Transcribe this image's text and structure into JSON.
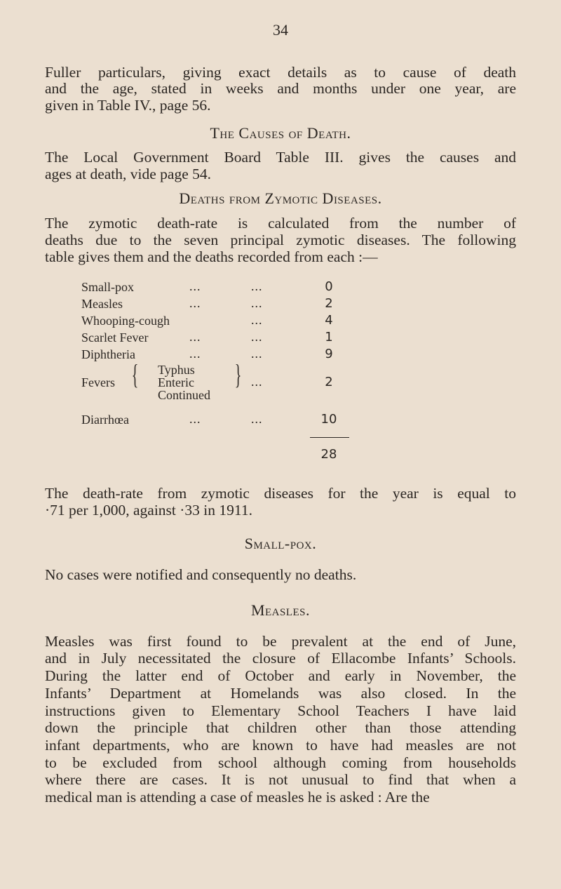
{
  "page_number": "34",
  "para1": [
    "Fuller particulars, giving exact details as to cause of death",
    "and the age, stated in weeks and months under one year, are",
    "given in Table IV., page 56."
  ],
  "heading_causes": "The Causes of Death.",
  "para2": [
    "The Local Government Board Table III. gives the causes and",
    "ages at death, vide page 54."
  ],
  "heading_zymotic": "Deaths from Zymotic Diseases.",
  "para3": [
    "The zymotic death-rate is calculated from the number of",
    "deaths due to the seven principal zymotic diseases. The following",
    "table gives them and the deaths recorded from each :—"
  ],
  "table": {
    "rows": [
      {
        "label": "Small-pox",
        "value": "0"
      },
      {
        "label": "Measles",
        "value": "2"
      },
      {
        "label": "Whooping-cough",
        "value": "4"
      },
      {
        "label": "Scarlet Fever",
        "value": "1"
      },
      {
        "label": "Diphtheria",
        "value": "9"
      },
      {
        "label": "Fevers",
        "sub": [
          "Typhus",
          "Enteric",
          "Continued"
        ],
        "value": "2"
      },
      {
        "label": "Diarrhœa",
        "value": "10"
      }
    ],
    "dots": "...",
    "total": "28"
  },
  "para4": [
    "The death-rate from zymotic diseases for the year is equal to",
    "·71 per 1,000, against ·33 in 1911."
  ],
  "heading_smallpox": "Small-pox.",
  "para5": [
    "No cases were notified and consequently no deaths."
  ],
  "heading_measles": "Measles.",
  "para6": [
    "Measles was first found to be prevalent at the end of June,",
    "and in July necessitated the closure of Ellacombe Infants’ Schools.",
    "During the latter end of October and early in November, the",
    "Infants’ Department at Homelands was also closed. In the",
    "instructions given to Elementary School Teachers I have laid",
    "down the principle that children other than those attending",
    "infant departments, who are known to have had measles are not",
    "to be excluded from school although coming from households",
    "where there are cases. It is not unusual to find that when a",
    "medical man is attending a case of measles he is asked : Are the"
  ]
}
